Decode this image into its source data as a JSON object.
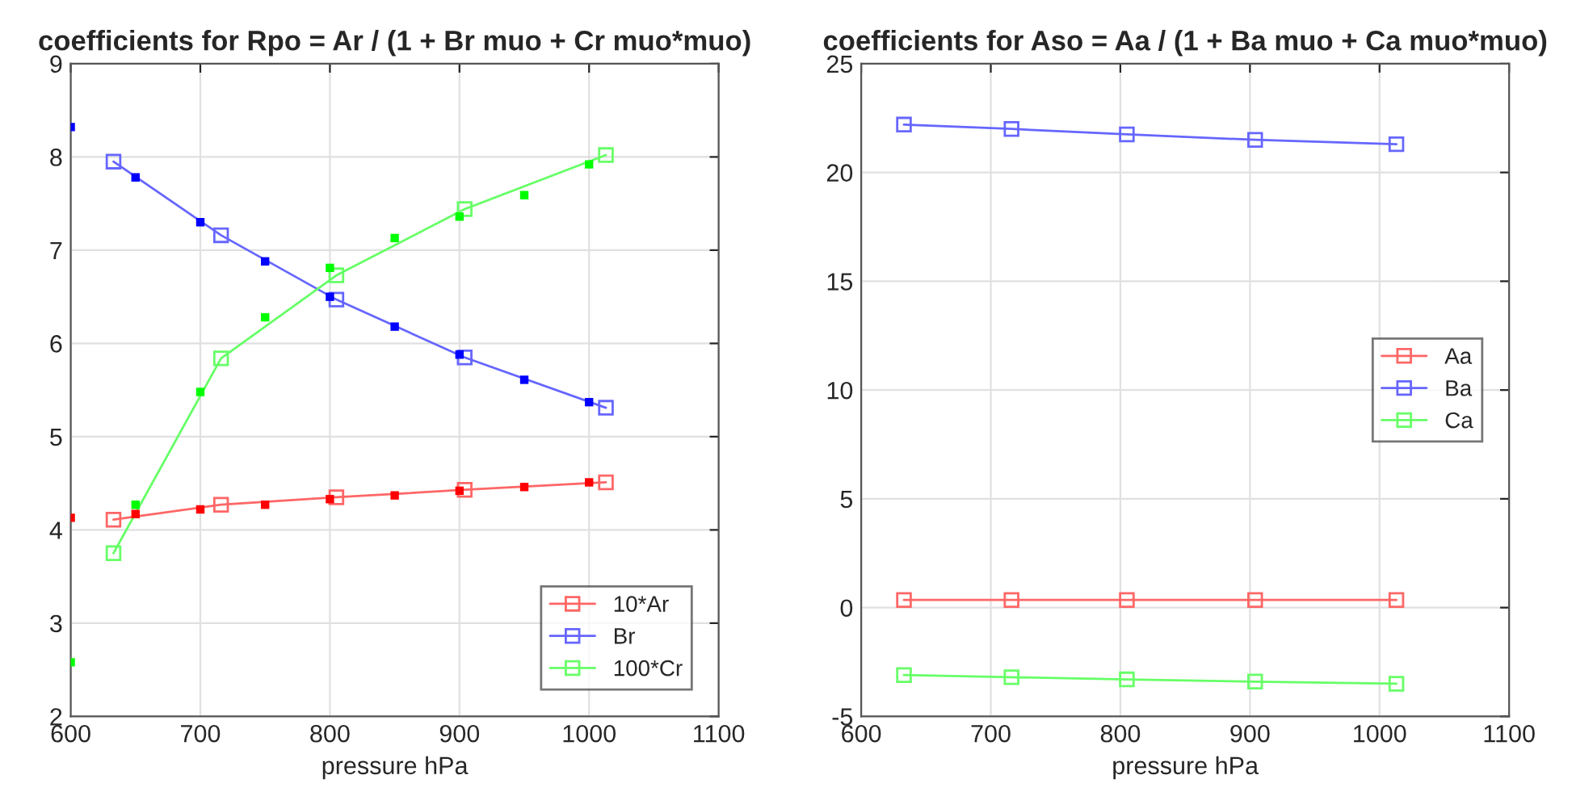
{
  "chart_data": [
    {
      "type": "line",
      "title": "coefficients for Rpo = Ar / (1 + Br muo + Cr muo*muo)",
      "xlabel": "pressure hPa",
      "xlim": [
        600,
        1100
      ],
      "xticks": [
        600,
        700,
        800,
        900,
        1000,
        1100
      ],
      "ylim": [
        2,
        9
      ],
      "yticks": [
        2,
        3,
        4,
        5,
        6,
        7,
        8,
        9
      ],
      "grid": true,
      "legend": "bottom right",
      "marker": "square",
      "series": [
        {
          "type": "scatter",
          "color": "#ff0000",
          "x": [
            600,
            650,
            700,
            750,
            800,
            850,
            900,
            950,
            1000
          ],
          "values": [
            4.13,
            4.17,
            4.22,
            4.27,
            4.33,
            4.37,
            4.42,
            4.46,
            4.51
          ]
        },
        {
          "type": "scatter",
          "color": "#0000ff",
          "x": [
            600,
            650,
            700,
            750,
            800,
            850,
            900,
            950,
            1000
          ],
          "values": [
            8.32,
            7.78,
            7.3,
            6.88,
            6.5,
            6.18,
            5.88,
            5.61,
            5.37
          ]
        },
        {
          "type": "scatter",
          "color": "#00ff00",
          "x": [
            600,
            650,
            700,
            750,
            800,
            850,
            900,
            950,
            1000
          ],
          "values": [
            2.58,
            4.27,
            5.48,
            6.28,
            6.81,
            7.13,
            7.36,
            7.59,
            7.92
          ]
        },
        {
          "name": "10*Ar",
          "color": "#ff6666",
          "x": [
            633,
            716,
            805,
            904,
            1013
          ],
          "values": [
            4.11,
            4.27,
            4.35,
            4.43,
            4.51
          ]
        },
        {
          "name": "Br",
          "color": "#6666ff",
          "x": [
            633,
            716,
            805,
            904,
            1013
          ],
          "values": [
            7.95,
            7.16,
            6.47,
            5.85,
            5.31
          ]
        },
        {
          "name": "100*Cr",
          "color": "#66ff66",
          "x": [
            633,
            716,
            805,
            904,
            1013
          ],
          "values": [
            3.75,
            5.84,
            6.73,
            7.44,
            8.02
          ]
        }
      ]
    },
    {
      "type": "line",
      "title": "coefficients for Aso = Aa / (1 + Ba muo + Ca muo*muo)",
      "xlabel": "pressure hPa",
      "xlim": [
        600,
        1100
      ],
      "xticks": [
        600,
        700,
        800,
        900,
        1000,
        1100
      ],
      "ylim": [
        -5,
        25
      ],
      "yticks": [
        -5,
        0,
        5,
        10,
        15,
        20,
        25
      ],
      "grid": true,
      "legend": "right",
      "marker": "square",
      "series": [
        {
          "name": "Aa",
          "color": "#ff6666",
          "x": [
            633,
            716,
            805,
            904,
            1013
          ],
          "values": [
            0.35,
            0.35,
            0.35,
            0.35,
            0.35
          ]
        },
        {
          "name": "Ba",
          "color": "#6666ff",
          "x": [
            633,
            716,
            805,
            904,
            1013
          ],
          "values": [
            22.2,
            22.0,
            21.75,
            21.5,
            21.3
          ]
        },
        {
          "name": "Ca",
          "color": "#66ff66",
          "x": [
            633,
            716,
            805,
            904,
            1013
          ],
          "values": [
            -3.1,
            -3.2,
            -3.3,
            -3.4,
            -3.5
          ]
        }
      ]
    }
  ]
}
